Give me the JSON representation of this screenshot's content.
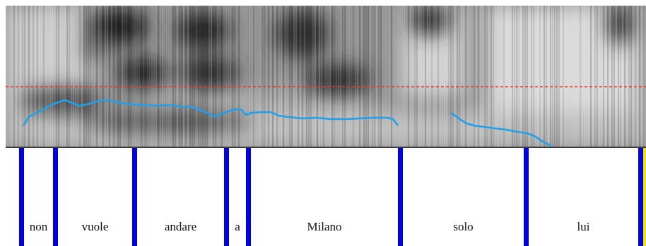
{
  "colors": {
    "boundary": "#0000e6",
    "pitch_contour": "#1fa0e8",
    "reference_line": "#e53a2a",
    "background": "#ffffff"
  },
  "words": [
    {
      "label": "non"
    },
    {
      "label": "vuole"
    },
    {
      "label": "andare"
    },
    {
      "label": "a"
    },
    {
      "label": "Milano"
    },
    {
      "label": "solo"
    },
    {
      "label": "lui"
    }
  ]
}
